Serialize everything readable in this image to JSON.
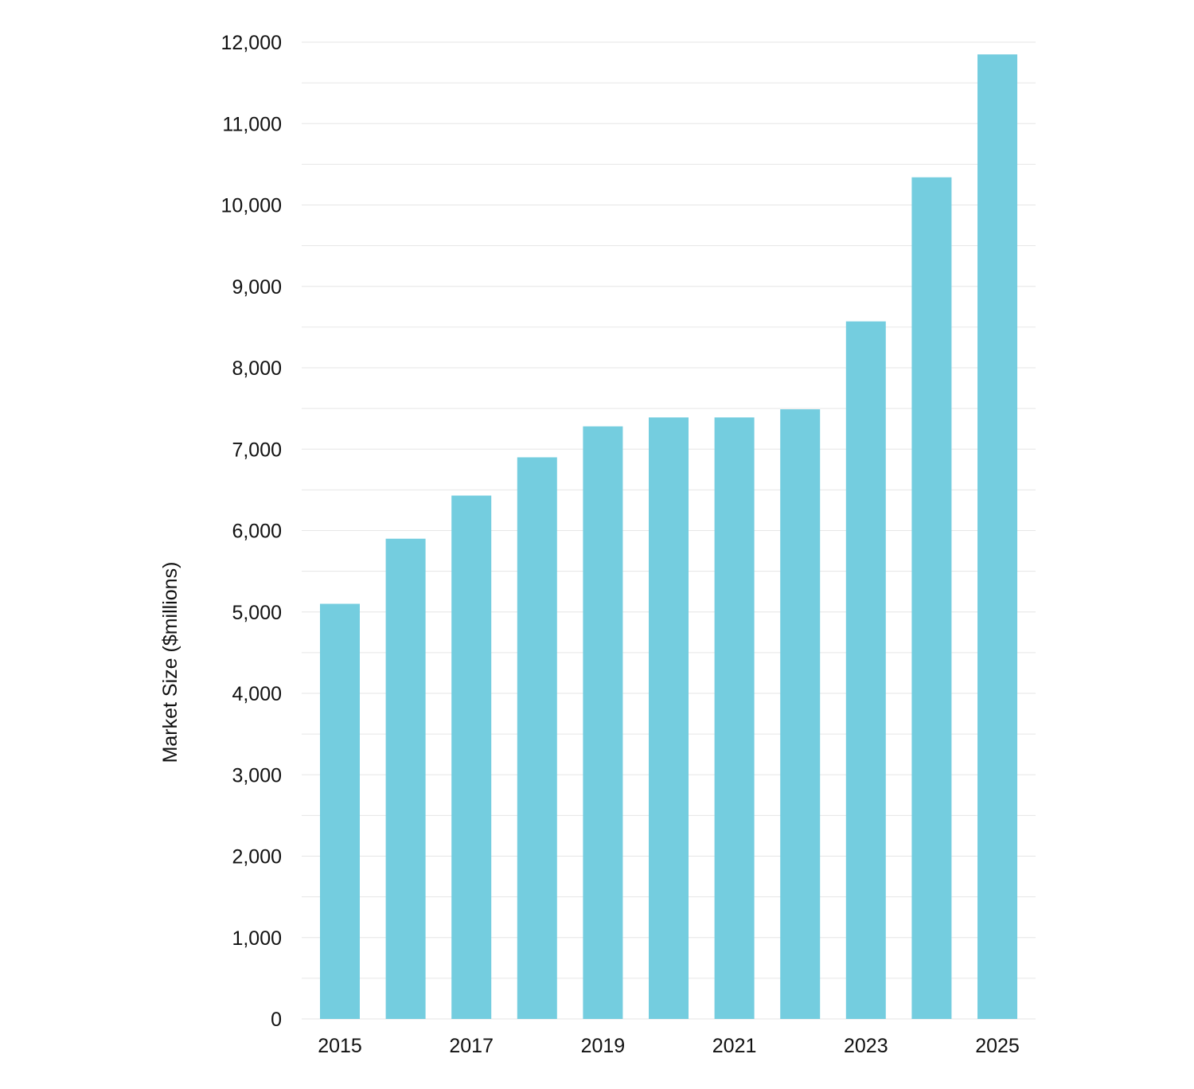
{
  "chart_data": {
    "type": "bar",
    "title": "",
    "xlabel": "",
    "ylabel": "Market Size ($millions)",
    "categories": [
      "2015",
      "2016",
      "2017",
      "2018",
      "2019",
      "2020",
      "2021",
      "2022",
      "2023",
      "2024",
      "2025"
    ],
    "x_tick_labels": [
      "2015",
      "",
      "2017",
      "",
      "2019",
      "",
      "2021",
      "",
      "2023",
      "",
      "2025"
    ],
    "values": [
      5100,
      5900,
      6430,
      6900,
      7280,
      7390,
      7390,
      7490,
      8570,
      10340,
      11850
    ],
    "ylim": [
      0,
      12000
    ],
    "y_ticks": [
      0,
      1000,
      2000,
      3000,
      4000,
      5000,
      6000,
      7000,
      8000,
      9000,
      10000,
      11000,
      12000
    ],
    "y_tick_labels": [
      "0",
      "1,000",
      "2,000",
      "3,000",
      "4,000",
      "5,000",
      "6,000",
      "7,000",
      "8,000",
      "9,000",
      "10,000",
      "11,000",
      "12,000"
    ],
    "grid": true,
    "legend": "none",
    "bar_color": "#74cddf",
    "grid_color": "#e6e6e6"
  }
}
